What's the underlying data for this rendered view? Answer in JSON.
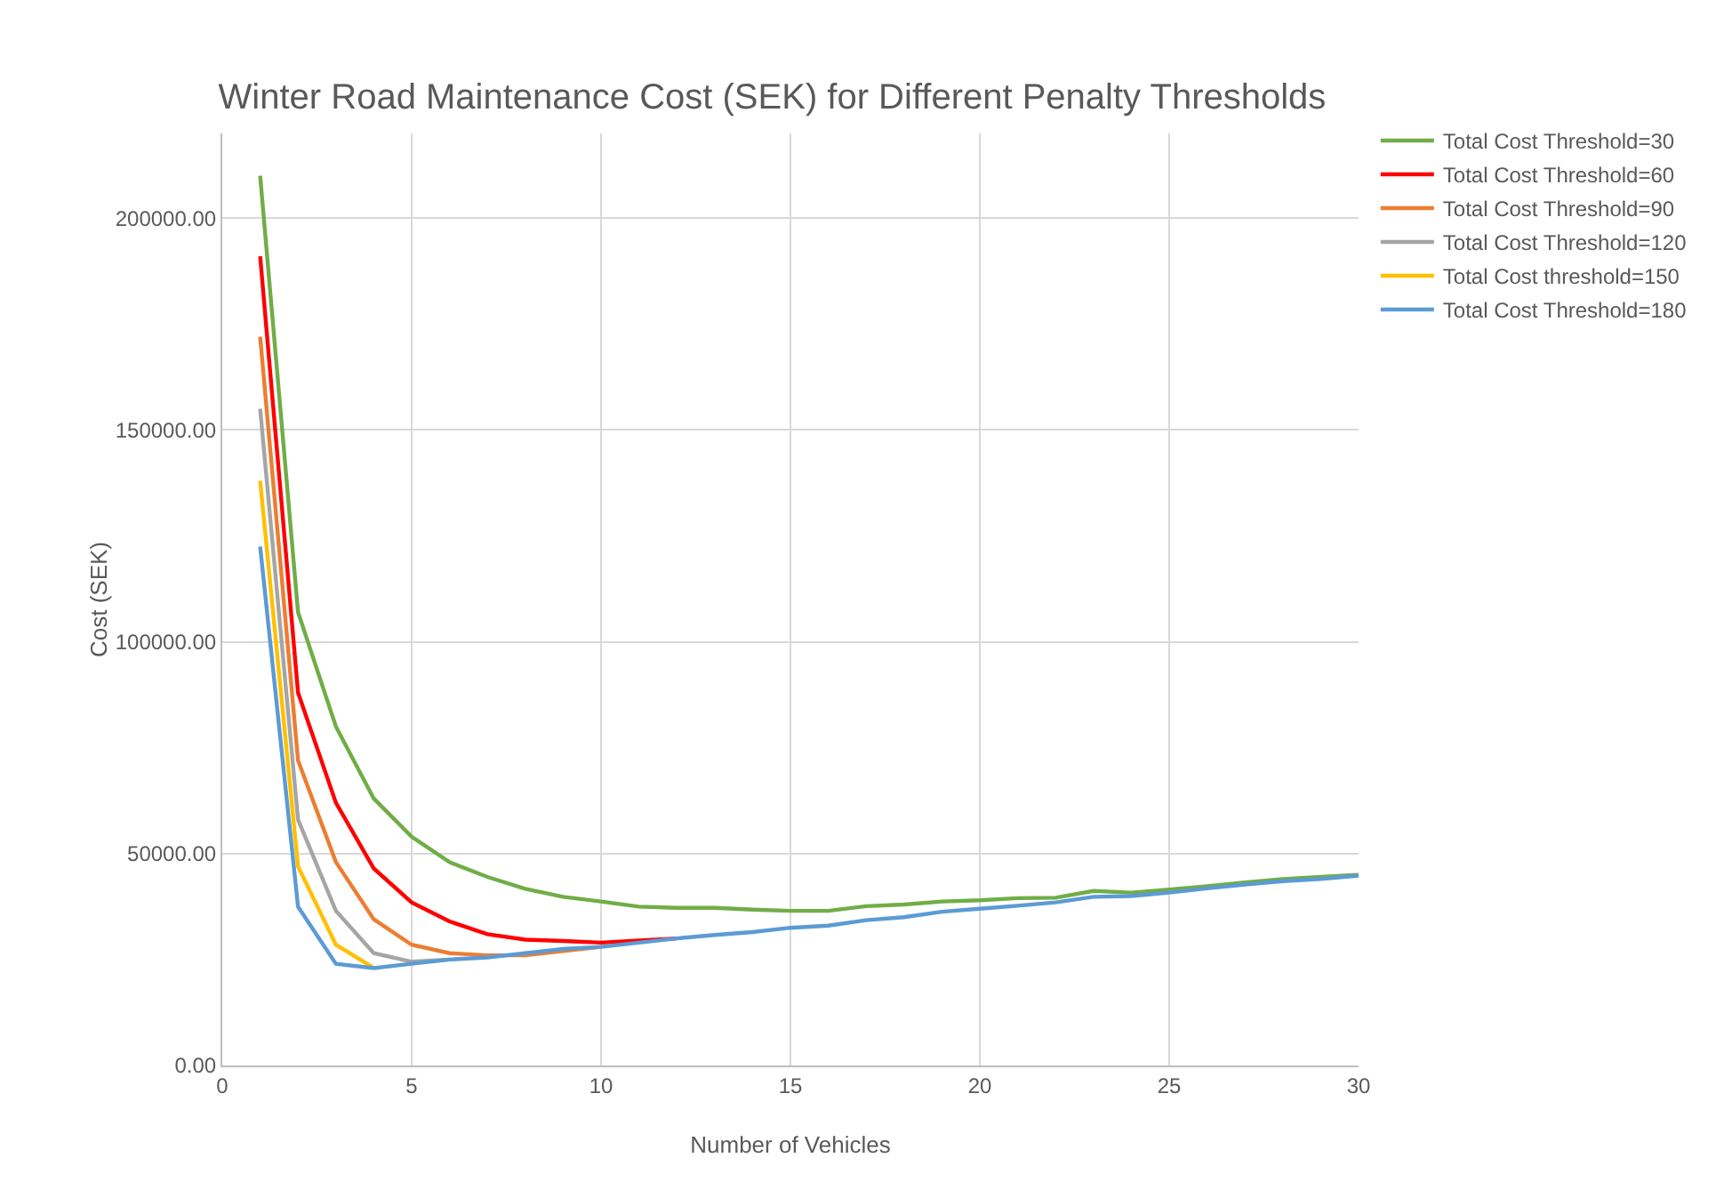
{
  "chart_data": {
    "type": "line",
    "title": "Winter Road Maintenance Cost (SEK) for Different Penalty Thresholds",
    "xlabel": "Number of Vehicles",
    "ylabel": "Cost (SEK)",
    "x": [
      1,
      2,
      3,
      4,
      5,
      6,
      7,
      8,
      9,
      10,
      11,
      12,
      13,
      14,
      15,
      16,
      17,
      18,
      19,
      20,
      21,
      22,
      23,
      24,
      25,
      26,
      27,
      28,
      29,
      30
    ],
    "series": [
      {
        "name": "Total Cost Threshold=30",
        "color": "#70ad47",
        "values": [
          210000,
          107000,
          80000,
          63000,
          54000,
          48000,
          44500,
          41700,
          39800,
          38700,
          37500,
          37200,
          37200,
          36800,
          36500,
          36500,
          37600,
          38000,
          38700,
          39000,
          39500,
          39600,
          41200,
          40800,
          41500,
          42300,
          43200,
          44000,
          44500,
          45000
        ]
      },
      {
        "name": "Total Cost Threshold=60",
        "color": "#ff0000",
        "values": [
          191000,
          88000,
          62000,
          46500,
          38500,
          34000,
          31000,
          29700,
          29400,
          29000,
          29500,
          30000,
          null,
          null,
          null,
          null,
          null,
          null,
          null,
          null,
          null,
          null,
          null,
          null,
          null,
          null,
          null,
          null,
          null,
          null
        ]
      },
      {
        "name": "Total Cost Threshold=90",
        "color": "#ed7d31",
        "values": [
          172000,
          72000,
          48000,
          34500,
          28500,
          26500,
          26000,
          26000,
          27000,
          28000,
          null,
          null,
          null,
          null,
          null,
          null,
          null,
          null,
          null,
          null,
          null,
          null,
          null,
          null,
          null,
          null,
          null,
          null,
          null,
          null
        ]
      },
      {
        "name": "Total Cost Threshold=120",
        "color": "#a5a5a5",
        "values": [
          155000,
          58000,
          36500,
          26500,
          24500,
          25000,
          null,
          null,
          null,
          null,
          null,
          null,
          null,
          null,
          null,
          null,
          null,
          null,
          null,
          null,
          null,
          null,
          null,
          null,
          null,
          null,
          null,
          null,
          null,
          null
        ]
      },
      {
        "name": "Total Cost threshold=150",
        "color": "#ffc000",
        "values": [
          138000,
          47000,
          28500,
          23000,
          null,
          null,
          null,
          null,
          null,
          null,
          null,
          null,
          null,
          null,
          null,
          null,
          null,
          null,
          null,
          null,
          null,
          null,
          null,
          null,
          null,
          null,
          null,
          null,
          null,
          null
        ]
      },
      {
        "name": "Total Cost Threshold=180",
        "color": "#5b9bd5",
        "values": [
          122500,
          37500,
          24000,
          23000,
          24000,
          25000,
          25500,
          26500,
          27500,
          28000,
          29000,
          30000,
          30800,
          31500,
          32500,
          33000,
          34300,
          35000,
          36300,
          37000,
          37700,
          38500,
          39800,
          40000,
          40800,
          41800,
          42700,
          43500,
          44000,
          44800
        ]
      }
    ],
    "xlim": [
      0,
      30
    ],
    "xticks": [
      0,
      5,
      10,
      15,
      20,
      25,
      30
    ],
    "ylim": [
      0,
      220000
    ],
    "yticks": [
      {
        "value": 0,
        "label": "0.00"
      },
      {
        "value": 50000,
        "label": "50000.00"
      },
      {
        "value": 100000,
        "label": "100000.00"
      },
      {
        "value": 150000,
        "label": "150000.00"
      },
      {
        "value": 200000,
        "label": "200000.00"
      }
    ],
    "grid": true,
    "legend": "top right",
    "marker": "none",
    "line_style": "solid"
  }
}
